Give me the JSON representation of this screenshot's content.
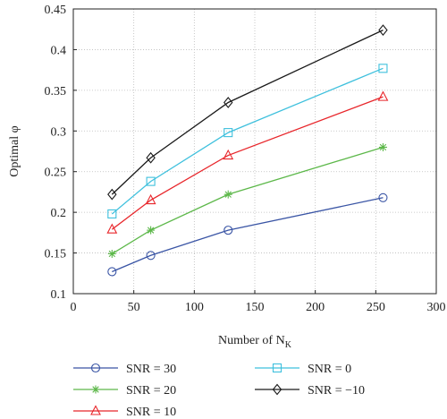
{
  "chart_data": {
    "type": "line",
    "title": "",
    "xlabel": "Number of N",
    "xlabel_subscript": "K",
    "ylabel": "Optimal φ",
    "xlim": [
      0,
      300
    ],
    "ylim": [
      0.1,
      0.45
    ],
    "xticks": [
      0,
      50,
      100,
      150,
      200,
      250,
      300
    ],
    "xtick_labels": [
      "0",
      "50",
      "100",
      "150",
      "200",
      "250",
      "300"
    ],
    "yticks": [
      0.1,
      0.15,
      0.2,
      0.25,
      0.3,
      0.35,
      0.4,
      0.45
    ],
    "ytick_labels": [
      "0.1",
      "0.15",
      "0.2",
      "0.25",
      "0.3",
      "0.35",
      "0.4",
      "0.45"
    ],
    "grid": true,
    "grid_style": "dotted",
    "legend_position": "bottom",
    "x": [
      32,
      64,
      128,
      256
    ],
    "series": [
      {
        "name": "SNR = 30",
        "values": [
          0.127,
          0.147,
          0.178,
          0.218
        ],
        "color": "#3a55a5",
        "marker": "circle"
      },
      {
        "name": "SNR = 20",
        "values": [
          0.149,
          0.178,
          0.222,
          0.28
        ],
        "color": "#5db84a",
        "marker": "star"
      },
      {
        "name": "SNR = 10",
        "values": [
          0.179,
          0.215,
          0.27,
          0.342
        ],
        "color": "#e8262b",
        "marker": "triangle"
      },
      {
        "name": "SNR = 0",
        "values": [
          0.198,
          0.238,
          0.298,
          0.377
        ],
        "color": "#3ec0dd",
        "marker": "square"
      },
      {
        "name": "SNR = −10",
        "values": [
          0.222,
          0.267,
          0.335,
          0.424
        ],
        "color": "#1a1a1a",
        "marker": "diamond"
      }
    ]
  }
}
